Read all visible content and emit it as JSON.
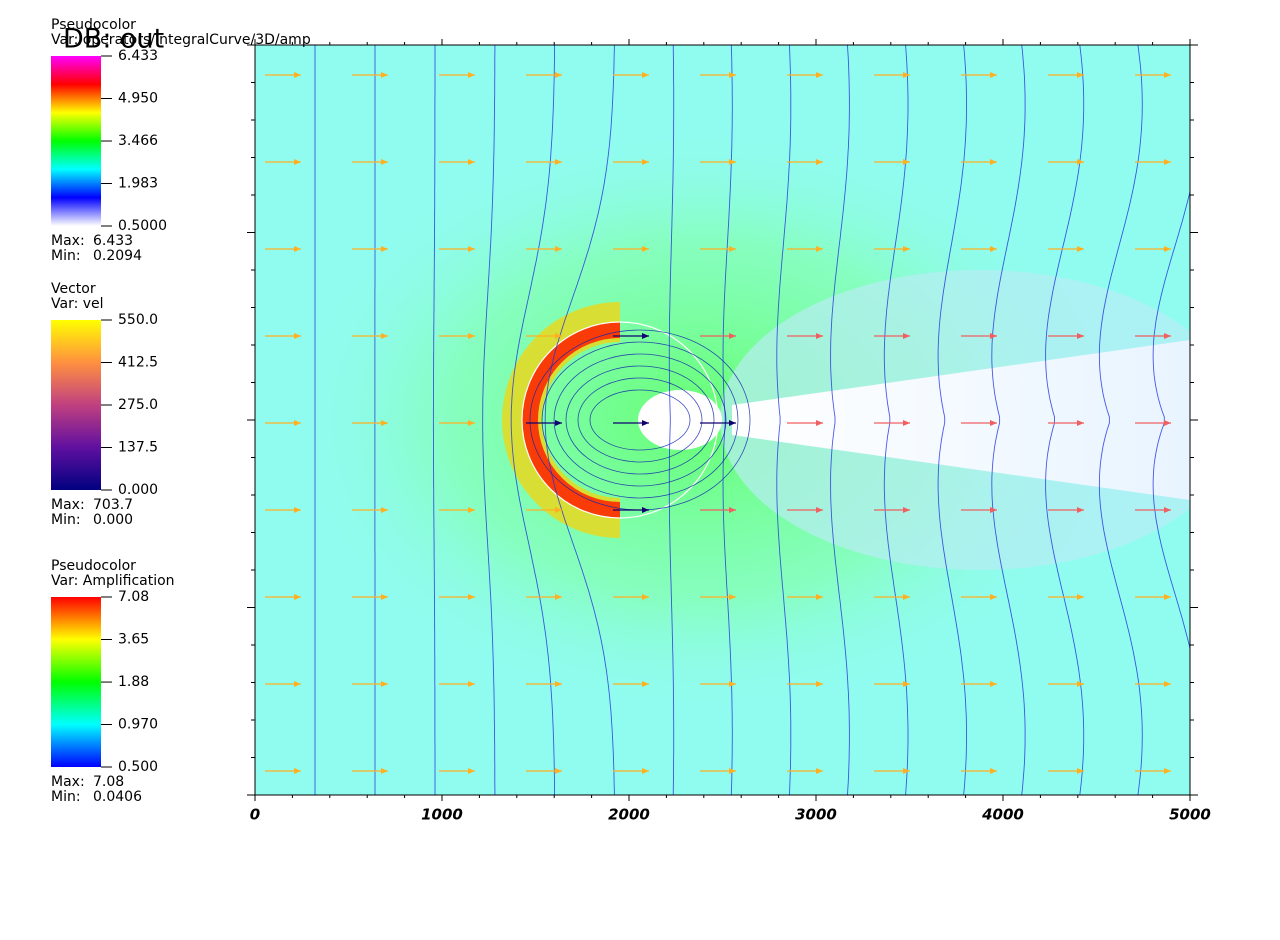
{
  "chart_data": {
    "type": "field",
    "title": "DB: out",
    "xlim": [
      0,
      5000
    ],
    "xticks": [
      0,
      1000,
      2000,
      3000,
      4000,
      5000
    ],
    "max_label": "Max:",
    "min_label": "Min:",
    "legends": [
      {
        "plot": "Pseudocolor",
        "var": "Var: operators/IntegralCurve/3D/amp",
        "scale": "linear",
        "range": [
          0.5,
          6.433
        ],
        "ticks": [
          6.433,
          {
            "value": 4.95,
            "label": "4.950"
          },
          3.466,
          1.983,
          {
            "value": 0.5,
            "label": "0.5000"
          }
        ],
        "max": 6.433,
        "min": 0.2094,
        "colors": [
          "#ff00ff",
          "#ff0000",
          "#ffff00",
          "#00ff00",
          "#00ffff",
          "#0000ff",
          "#ffffff"
        ]
      },
      {
        "plot": "Vector",
        "var": "Var: vel",
        "scale": "linear",
        "range": [
          0,
          550
        ],
        "ticks": [
          {
            "value": 550,
            "label": "550.0"
          },
          412.5,
          {
            "value": 275,
            "label": "275.0"
          },
          137.5,
          {
            "value": 0,
            "label": "0.000"
          }
        ],
        "max": 703.7,
        "min": {
          "value": 0,
          "label": "0.000"
        },
        "colors": [
          "#ffff00",
          "#ff9040",
          "#c04080",
          "#6010a0",
          "#000080"
        ]
      },
      {
        "plot": "Pseudocolor",
        "var": "Var: Amplification",
        "scale": "log",
        "range": [
          0.5,
          7.08
        ],
        "ticks": [
          7.08,
          3.65,
          1.88,
          {
            "value": 0.97,
            "label": "0.970"
          },
          {
            "value": 0.5,
            "label": "0.500"
          }
        ],
        "max": 7.08,
        "min": 0.0406,
        "colors": [
          "#ff0000",
          "#ffff00",
          "#00ff00",
          "#00ffff",
          "#0000ff"
        ]
      }
    ]
  }
}
